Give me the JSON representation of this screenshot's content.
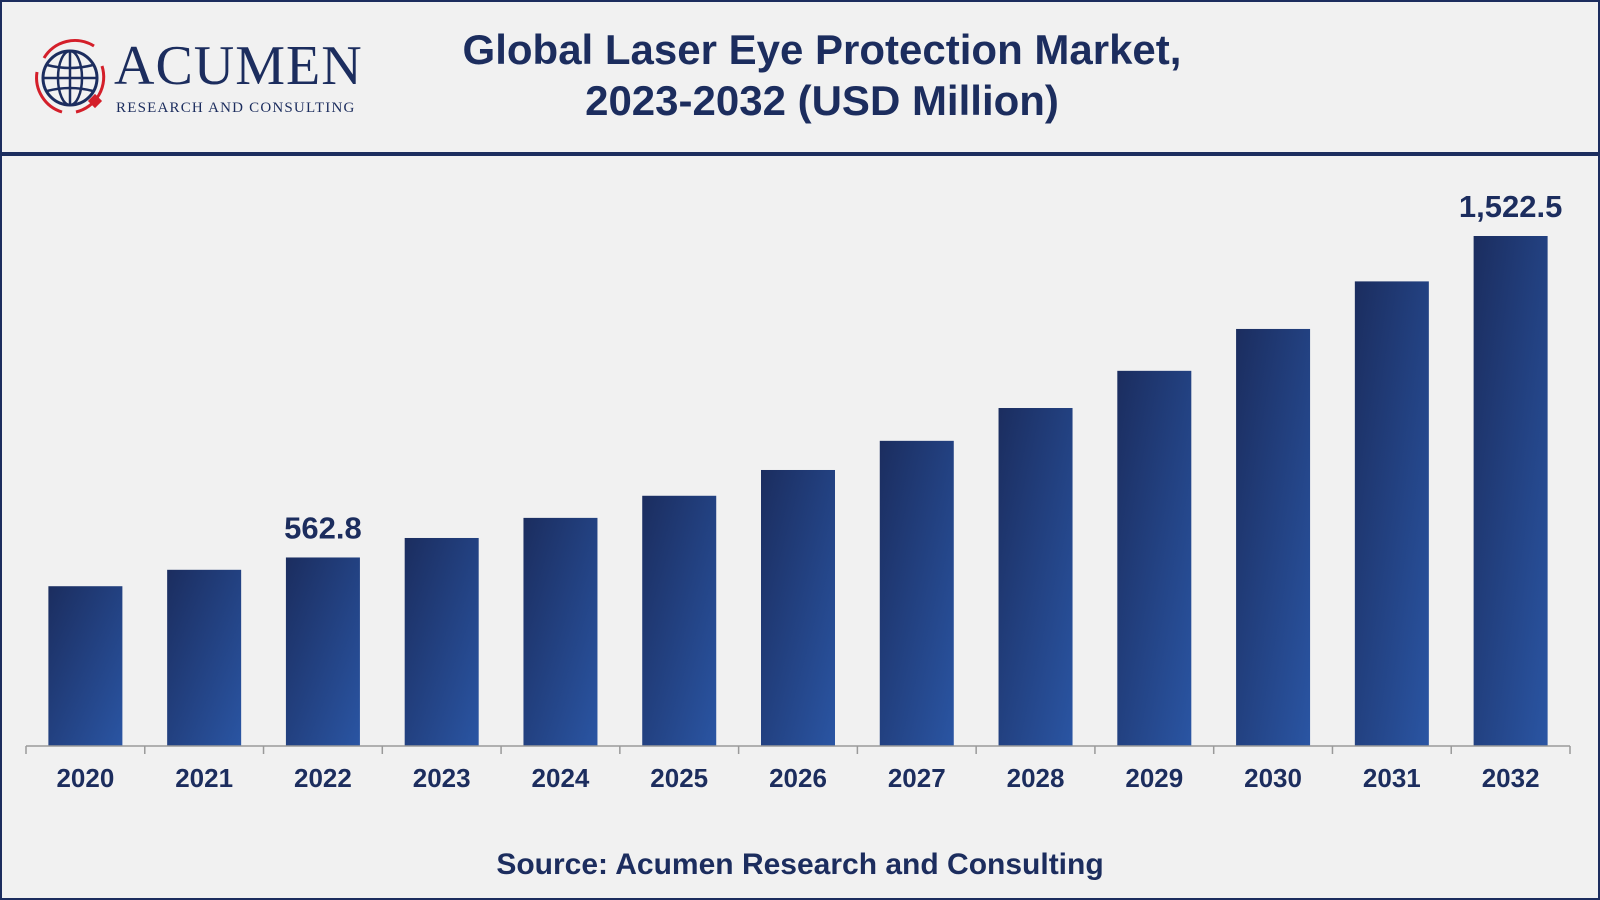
{
  "header": {
    "title_line1": "Global Laser Eye Protection Market,",
    "title_line2": "2023-2032 (USD Million)",
    "logo_word": "ACUMEN",
    "logo_sub": "RESEARCH AND CONSULTING"
  },
  "colors": {
    "brand": "#1c2d5e",
    "bar_dark": "#1b2d5f",
    "bar_light": "#2a55a3",
    "logo_red": "#d41f2a"
  },
  "source": "Source: Acumen Research and Consulting",
  "chart_data": {
    "type": "bar",
    "title": "Global Laser Eye Protection Market, 2023-2032 (USD Million)",
    "xlabel": "",
    "ylabel": "",
    "categories": [
      "2020",
      "2021",
      "2022",
      "2023",
      "2024",
      "2025",
      "2026",
      "2027",
      "2028",
      "2029",
      "2030",
      "2031",
      "2032"
    ],
    "values": [
      477.0,
      526.0,
      562.8,
      621.0,
      681.0,
      747.0,
      824.0,
      911.0,
      1009.0,
      1120.0,
      1245.0,
      1387.0,
      1522.5
    ],
    "data_labels": [
      {
        "category": "2022",
        "text": "562.8"
      },
      {
        "category": "2032",
        "text": "1,522.5"
      }
    ],
    "ylim": [
      0,
      1800
    ],
    "grid": false,
    "legend": "none"
  }
}
